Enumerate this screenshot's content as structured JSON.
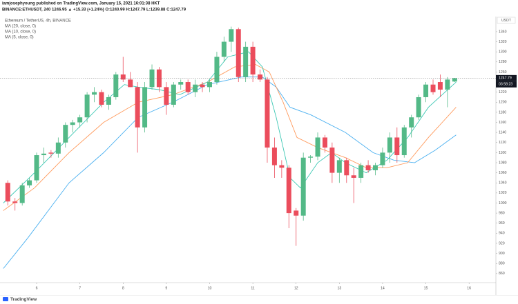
{
  "header": {
    "author_line": "iamjosephyoung published on TradingView.com, January 15, 2021 16:01:38 HKT",
    "symbol_line": "BINANCE:ETHUSDT, 240  1246.95 ▲ +15.33 (+1.24%)  O:1240.99  H:1247.79  L:1239.88  C:1247.79"
  },
  "footer": {
    "brand": "TradingView"
  },
  "chart_data": {
    "type": "candlestick",
    "title": "Ethereum / TetherUS, 4h, BINANCE",
    "axis_unit": "USDT",
    "countdown": "03:58:23",
    "last_price": 1247.79,
    "up_color": "#53b987",
    "down_color": "#eb4d5c",
    "grid": false,
    "xlim": [
      5.153,
      16.62
    ],
    "xticks": [
      6,
      7,
      8,
      9,
      10,
      11,
      12,
      13,
      14,
      15,
      16
    ],
    "ylim": [
      842,
      1370
    ],
    "yticks": [
      860,
      880,
      900,
      920,
      940,
      960,
      980,
      1000,
      1020,
      1040,
      1060,
      1080,
      1100,
      1120,
      1140,
      1160,
      1180,
      1200,
      1220,
      1240,
      1260,
      1280,
      1300,
      1320,
      1340
    ],
    "x": [
      5.333,
      5.5,
      5.667,
      5.833,
      6,
      6.167,
      6.333,
      6.5,
      6.667,
      6.833,
      7,
      7.167,
      7.333,
      7.5,
      7.667,
      7.833,
      8,
      8.167,
      8.333,
      8.5,
      8.667,
      8.833,
      9,
      9.167,
      9.333,
      9.5,
      9.667,
      9.833,
      10,
      10.167,
      10.333,
      10.5,
      10.667,
      10.833,
      11,
      11.167,
      11.333,
      11.5,
      11.667,
      11.833,
      12,
      12.167,
      12.333,
      12.5,
      12.667,
      12.833,
      13,
      13.167,
      13.333,
      13.5,
      13.667,
      13.833,
      14,
      14.167,
      14.333,
      14.5,
      14.667,
      14.833,
      15,
      15.167,
      15.333,
      15.5,
      15.667
    ],
    "open": [
      1040,
      1003,
      1000,
      1035,
      1045,
      1095,
      1100,
      1098,
      1120,
      1155,
      1160,
      1170,
      1215,
      1220,
      1195,
      1210,
      1255,
      1245,
      1230,
      1150,
      1230,
      1265,
      1230,
      1195,
      1235,
      1240,
      1220,
      1235,
      1230,
      1240,
      1290,
      1320,
      1345,
      1250,
      1310,
      1255,
      1245,
      1110,
      1075,
      1070,
      985,
      975,
      1090,
      1092,
      1130,
      1110,
      1060,
      1085,
      1055,
      1050,
      1075,
      1065,
      1075,
      1100,
      1130,
      1095,
      1150,
      1170,
      1210,
      1235,
      1240,
      1225,
      1241
    ],
    "high": [
      1045,
      1010,
      1040,
      1050,
      1100,
      1110,
      1105,
      1130,
      1160,
      1165,
      1175,
      1220,
      1230,
      1225,
      1215,
      1260,
      1290,
      1260,
      1240,
      1240,
      1275,
      1270,
      1240,
      1240,
      1245,
      1245,
      1245,
      1240,
      1245,
      1300,
      1330,
      1350,
      1348,
      1320,
      1320,
      1265,
      1250,
      1130,
      1085,
      1075,
      990,
      1100,
      1095,
      1140,
      1135,
      1120,
      1090,
      1090,
      1070,
      1080,
      1085,
      1080,
      1110,
      1140,
      1150,
      1155,
      1175,
      1215,
      1240,
      1245,
      1255,
      1250,
      1248
    ],
    "low": [
      995,
      985,
      995,
      1030,
      1040,
      1080,
      1090,
      1090,
      1110,
      1140,
      1150,
      1160,
      1200,
      1190,
      1185,
      1205,
      1240,
      1230,
      1100,
      1140,
      1225,
      1220,
      1175,
      1190,
      1225,
      1215,
      1210,
      1220,
      1220,
      1235,
      1280,
      1300,
      1240,
      1240,
      1240,
      1240,
      1080,
      1050,
      1050,
      950,
      915,
      965,
      1080,
      1085,
      1100,
      1040,
      1040,
      1040,
      1000,
      1040,
      1060,
      1055,
      1070,
      1080,
      1080,
      1090,
      1130,
      1165,
      1200,
      1215,
      1210,
      1190,
      1240
    ],
    "close": [
      1003,
      1000,
      1035,
      1045,
      1095,
      1098,
      1098,
      1120,
      1155,
      1160,
      1170,
      1215,
      1220,
      1195,
      1210,
      1255,
      1245,
      1230,
      1150,
      1230,
      1265,
      1230,
      1195,
      1235,
      1240,
      1220,
      1235,
      1230,
      1240,
      1290,
      1320,
      1345,
      1250,
      1310,
      1255,
      1245,
      1110,
      1075,
      1070,
      980,
      975,
      1090,
      1092,
      1130,
      1110,
      1060,
      1085,
      1055,
      1050,
      1075,
      1065,
      1075,
      1100,
      1130,
      1095,
      1150,
      1170,
      1210,
      1235,
      1220,
      1225,
      1245,
      1247.79
    ],
    "lines": [
      {
        "name": "MA (20, close, 0)",
        "color": "#4ab0f0",
        "x": [
          5.23,
          5.79,
          6.75,
          7.55,
          8.35,
          9.15,
          9.95,
          10.74,
          11.22,
          11.54,
          11.86,
          12.34,
          13.14,
          13.78,
          14.26,
          14.74,
          15.22,
          15.7
        ],
        "values": [
          870,
          930,
          1040,
          1100,
          1170,
          1200,
          1235,
          1250,
          1250,
          1230,
          1190,
          1175,
          1140,
          1100,
          1085,
          1080,
          1105,
          1135
        ]
      },
      {
        "name": "MA (10, close, 0)",
        "color": "#ff9a5c",
        "x": [
          5.23,
          5.95,
          6.75,
          7.55,
          8.35,
          9.15,
          9.95,
          10.58,
          11.06,
          11.38,
          11.7,
          12.02,
          12.5,
          13.14,
          13.62,
          14.1,
          14.58,
          15.06,
          15.7
        ],
        "values": [
          985,
          1030,
          1100,
          1160,
          1200,
          1215,
          1240,
          1270,
          1275,
          1260,
          1200,
          1130,
          1110,
          1090,
          1070,
          1070,
          1080,
          1130,
          1190
        ]
      },
      {
        "name": "MA (5, close, 0)",
        "color": "#3cc8b4",
        "x": [
          5.23,
          5.95,
          6.75,
          7.55,
          8.03,
          8.35,
          8.83,
          9.31,
          9.95,
          10.42,
          10.9,
          11.22,
          11.54,
          11.86,
          12.1,
          12.5,
          12.82,
          13.14,
          13.62,
          14.1,
          14.58,
          15.06,
          15.7
        ],
        "values": [
          1000,
          1060,
          1130,
          1200,
          1235,
          1230,
          1225,
          1215,
          1240,
          1290,
          1300,
          1270,
          1170,
          1050,
          1030,
          1080,
          1100,
          1080,
          1060,
          1085,
          1130,
          1190,
          1240
        ]
      }
    ]
  }
}
